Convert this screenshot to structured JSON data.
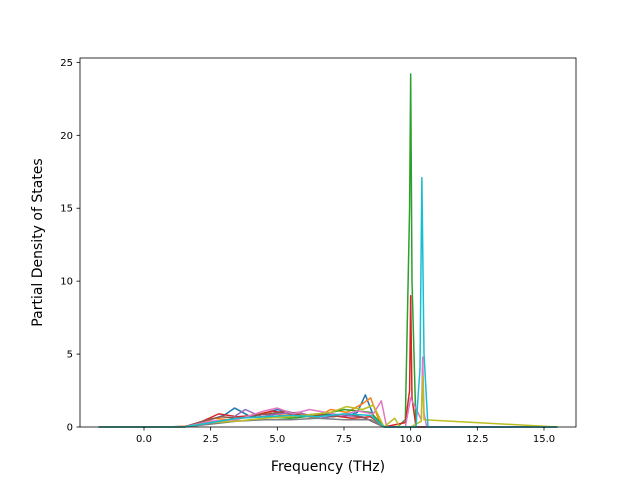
{
  "chart_data": {
    "type": "line",
    "title": "",
    "xlabel": "Frequency (THz)",
    "ylabel": "Partial Density of States",
    "xlim": [
      -2.4,
      16.2
    ],
    "ylim": [
      0,
      25.3
    ],
    "xticks": [
      0.0,
      2.5,
      5.0,
      7.5,
      10.0,
      12.5,
      15.0
    ],
    "xtick_labels": [
      "0.0",
      "2.5",
      "5.0",
      "7.5",
      "10.0",
      "12.5",
      "15.0"
    ],
    "yticks": [
      0,
      5,
      10,
      15,
      20,
      25
    ],
    "ytick_labels": [
      "0",
      "5",
      "10",
      "15",
      "20",
      "25"
    ],
    "grid": false,
    "legend": "none",
    "series": [
      {
        "color": "#1f77b4",
        "x": [
          -1.7,
          0.8,
          1.6,
          2.0,
          2.5,
          3.0,
          3.4,
          3.6,
          4.0,
          4.5,
          5.0,
          5.5,
          6.0,
          6.5,
          7.0,
          7.5,
          8.0,
          8.3,
          8.6,
          9.0,
          9.5,
          10.0,
          10.5,
          11.0,
          15.5
        ],
        "y": [
          0,
          0,
          0.05,
          0.2,
          0.5,
          0.8,
          1.3,
          1.1,
          0.7,
          0.9,
          1.2,
          1.0,
          0.8,
          0.7,
          0.9,
          0.7,
          1.0,
          2.2,
          0.8,
          0,
          0,
          0,
          0,
          0,
          0
        ]
      },
      {
        "color": "#ff7f0e",
        "x": [
          -1.7,
          1.0,
          2.0,
          2.6,
          3.2,
          4.0,
          4.6,
          5.2,
          5.8,
          6.4,
          7.0,
          7.6,
          8.2,
          8.5,
          8.8,
          9.0,
          15.5
        ],
        "y": [
          0,
          0,
          0.1,
          0.6,
          0.5,
          0.8,
          1.0,
          0.8,
          0.9,
          0.6,
          1.2,
          1.0,
          1.6,
          2.0,
          0.5,
          0,
          0
        ]
      },
      {
        "color": "#2ca02c",
        "x": [
          -1.7,
          1.5,
          2.5,
          3.5,
          4.5,
          5.5,
          6.5,
          7.5,
          8.5,
          9.0,
          9.5,
          9.8,
          9.96,
          10.0,
          10.05,
          10.2,
          15.5
        ],
        "y": [
          0,
          0,
          0.3,
          0.6,
          0.7,
          0.6,
          0.8,
          1.2,
          1.0,
          0,
          0,
          0.5,
          15.0,
          24.2,
          10.0,
          0,
          0
        ]
      },
      {
        "color": "#d62728",
        "x": [
          -1.7,
          1.5,
          2.2,
          2.8,
          3.5,
          4.2,
          4.8,
          5.5,
          6.2,
          7.0,
          7.8,
          8.5,
          9.0,
          9.8,
          9.96,
          10.0,
          10.05,
          10.2,
          15.5
        ],
        "y": [
          0,
          0,
          0.4,
          0.9,
          0.7,
          0.8,
          1.1,
          0.9,
          0.7,
          0.8,
          0.6,
          0.7,
          0,
          0.3,
          2.5,
          9.0,
          2.0,
          0,
          0
        ]
      },
      {
        "color": "#9467bd",
        "x": [
          -1.7,
          1.5,
          2.5,
          3.2,
          3.8,
          4.4,
          5.0,
          5.8,
          6.6,
          7.4,
          8.2,
          9.0,
          15.5
        ],
        "y": [
          0,
          0,
          0.3,
          0.5,
          1.2,
          0.7,
          0.9,
          1.0,
          0.6,
          0.8,
          0.7,
          0,
          0
        ]
      },
      {
        "color": "#8c564b",
        "x": [
          -1.7,
          1.5,
          2.4,
          2.9,
          3.5,
          4.1,
          4.7,
          5.3,
          5.9,
          6.5,
          7.1,
          7.7,
          8.3,
          9.0,
          15.5
        ],
        "y": [
          0,
          0,
          0.5,
          0.7,
          0.6,
          0.8,
          0.9,
          1.1,
          0.8,
          0.9,
          0.7,
          0.9,
          0.6,
          0,
          0
        ]
      },
      {
        "color": "#e377c2",
        "x": [
          -1.7,
          1.5,
          2.5,
          3.5,
          4.5,
          5.0,
          5.6,
          6.2,
          6.8,
          7.4,
          8.0,
          8.6,
          8.9,
          9.1,
          9.8,
          10.0,
          10.4,
          10.45,
          10.5,
          10.6,
          15.5
        ],
        "y": [
          0,
          0,
          0.4,
          0.5,
          1.1,
          1.3,
          0.9,
          1.2,
          1.0,
          0.8,
          1.1,
          0.9,
          1.8,
          0,
          0,
          2.0,
          0.5,
          4.8,
          1.0,
          0,
          0
        ]
      },
      {
        "color": "#7f7f7f",
        "x": [
          -1.7,
          1.5,
          2.5,
          3.5,
          4.5,
          5.5,
          6.5,
          7.5,
          8.5,
          9.0,
          15.5
        ],
        "y": [
          0,
          0,
          0.2,
          0.4,
          0.5,
          0.5,
          0.6,
          0.5,
          0.5,
          0,
          0
        ]
      },
      {
        "color": "#bcbd22",
        "x": [
          -1.7,
          1.5,
          2.5,
          3.5,
          4.5,
          5.5,
          6.5,
          7.0,
          7.6,
          8.2,
          8.6,
          9.0,
          9.4,
          9.6,
          10.0,
          10.4,
          10.45,
          10.5,
          15.5
        ],
        "y": [
          0,
          0,
          0.3,
          0.4,
          0.6,
          0.7,
          0.9,
          1.0,
          1.4,
          1.2,
          1.5,
          0,
          0.6,
          0,
          0,
          0.4,
          3.5,
          0.5,
          0
        ]
      },
      {
        "color": "#17becf",
        "x": [
          -1.7,
          1.5,
          2.5,
          3.5,
          4.5,
          5.5,
          6.5,
          7.5,
          8.5,
          9.0,
          10.2,
          10.35,
          10.42,
          10.5,
          10.65,
          15.5
        ],
        "y": [
          0,
          0,
          0.3,
          0.6,
          0.7,
          0.8,
          0.7,
          0.9,
          0.8,
          0,
          0,
          4.0,
          17.1,
          5.0,
          0,
          0
        ]
      }
    ]
  }
}
